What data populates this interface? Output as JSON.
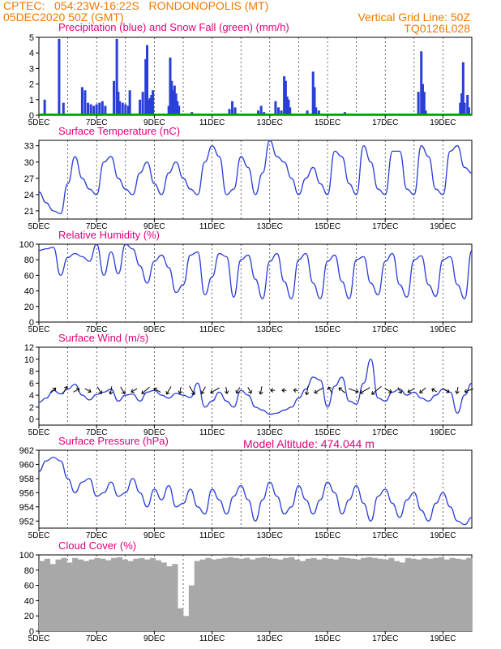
{
  "header": {
    "line1_left": "CPTEC:   054:23W-16:22S   RONDONOPOLIS (MT)",
    "line2_left": "05DEC2020 50Z (GMT)",
    "line2_right": "Vertical Grid Line: 50Z",
    "line3_right": "TQ0126L028",
    "altitude": "Model Altitude: 474.044 m"
  },
  "colors": {
    "orange": "#f07a00",
    "magenta": "#e0007a",
    "line": "#2a3ed8",
    "snow": "#00a000",
    "cloud": "#a8a8a8"
  },
  "date_ticks": [
    "5DEC",
    "7DEC",
    "9DEC",
    "11DEC",
    "13DEC",
    "15DEC",
    "17DEC",
    "19DEC"
  ],
  "chart_data": [
    {
      "type": "bar",
      "title": "Precipitation (blue) and Snow Fall (green) (mm/h)",
      "ylabel": "",
      "ylim": [
        0,
        5
      ],
      "yticks": [
        "0",
        "1",
        "2",
        "3",
        "4",
        "5"
      ],
      "x_unit": "days since 05DEC 00Z",
      "xlim": [
        0,
        15
      ],
      "series": [
        {
          "name": "Precipitation",
          "values": [
            [
              0.2,
              1.0
            ],
            [
              0.7,
              4.9
            ],
            [
              0.85,
              0.8
            ],
            [
              1.5,
              1.8
            ],
            [
              1.6,
              1.6
            ],
            [
              1.7,
              0.8
            ],
            [
              1.8,
              0.7
            ],
            [
              1.9,
              0.6
            ],
            [
              2.0,
              0.7
            ],
            [
              2.1,
              0.8
            ],
            [
              2.2,
              0.9
            ],
            [
              2.3,
              0.6
            ],
            [
              2.6,
              2.2
            ],
            [
              2.7,
              4.9
            ],
            [
              2.75,
              1.5
            ],
            [
              2.8,
              0.9
            ],
            [
              2.9,
              0.8
            ],
            [
              3.0,
              0.7
            ],
            [
              3.1,
              0.6
            ],
            [
              3.15,
              1.6
            ],
            [
              3.5,
              1.0
            ],
            [
              3.6,
              1.5
            ],
            [
              3.7,
              3.6
            ],
            [
              3.75,
              4.5
            ],
            [
              3.8,
              1.0
            ],
            [
              3.85,
              1.1
            ],
            [
              3.9,
              1.3
            ],
            [
              3.95,
              1.6
            ],
            [
              4.5,
              0.6
            ],
            [
              4.55,
              3.7
            ],
            [
              4.6,
              2.2
            ],
            [
              4.65,
              1.6
            ],
            [
              4.7,
              1.9
            ],
            [
              4.75,
              1.4
            ],
            [
              4.8,
              0.9
            ],
            [
              4.85,
              0.6
            ],
            [
              5.3,
              0.2
            ],
            [
              6.6,
              0.4
            ],
            [
              6.7,
              0.9
            ],
            [
              6.8,
              0.5
            ],
            [
              7.6,
              0.3
            ],
            [
              7.7,
              0.6
            ],
            [
              7.8,
              0.2
            ],
            [
              8.2,
              0.9
            ],
            [
              8.3,
              0.5
            ],
            [
              8.4,
              0.3
            ],
            [
              8.5,
              2.5
            ],
            [
              8.55,
              2.2
            ],
            [
              8.6,
              1.2
            ],
            [
              8.65,
              1.0
            ],
            [
              8.7,
              0.5
            ],
            [
              9.3,
              0.3
            ],
            [
              9.5,
              2.8
            ],
            [
              9.55,
              1.8
            ],
            [
              9.6,
              0.5
            ],
            [
              9.7,
              0.3
            ],
            [
              10.6,
              0.2
            ],
            [
              13.15,
              1.5
            ],
            [
              13.25,
              4.1
            ],
            [
              13.3,
              2.0
            ],
            [
              13.35,
              1.5
            ],
            [
              13.4,
              0.3
            ],
            [
              14.6,
              0.8
            ],
            [
              14.65,
              1.4
            ],
            [
              14.7,
              3.4
            ],
            [
              14.75,
              0.8
            ],
            [
              14.85,
              1.3
            ],
            [
              14.9,
              0.5
            ]
          ]
        },
        {
          "name": "Snow Fall",
          "values": []
        }
      ]
    },
    {
      "type": "line",
      "title": "Surface Temperature (nC)",
      "ylim": [
        19.5,
        34
      ],
      "yticks": [
        "21",
        "24",
        "27",
        "30",
        "33"
      ],
      "x": [
        0,
        0.25,
        0.5,
        0.75,
        1.0,
        1.25,
        1.5,
        1.75,
        2.0,
        2.25,
        2.5,
        2.75,
        3.0,
        3.25,
        3.5,
        3.75,
        4.0,
        4.25,
        4.5,
        4.75,
        5.0,
        5.25,
        5.5,
        5.75,
        6.0,
        6.25,
        6.5,
        6.75,
        7.0,
        7.25,
        7.5,
        7.75,
        8.0,
        8.25,
        8.5,
        8.75,
        9.0,
        9.25,
        9.5,
        9.75,
        10.0,
        10.25,
        10.5,
        10.75,
        11.0,
        11.25,
        11.5,
        11.75,
        12.0,
        12.25,
        12.5,
        12.75,
        13.0,
        13.25,
        13.5,
        13.75,
        14.0,
        14.25,
        14.5,
        14.75,
        15.0
      ],
      "values": [
        24.5,
        22.5,
        21,
        20.5,
        26,
        31,
        27,
        25,
        24,
        30,
        31,
        27,
        25,
        24,
        28,
        30,
        26,
        24,
        28,
        30,
        27,
        25,
        24,
        30,
        33,
        31,
        24,
        25,
        31,
        29,
        24,
        28,
        34,
        31,
        30,
        27,
        24,
        27,
        29,
        26,
        24,
        32,
        31,
        26,
        24,
        33,
        30,
        25,
        24,
        32,
        32,
        25,
        24,
        33,
        31,
        25,
        24,
        32,
        33,
        29,
        28
      ]
    },
    {
      "type": "line",
      "title": "Relative Humidity (%)",
      "ylim": [
        0,
        100
      ],
      "yticks": [
        "0",
        "20",
        "40",
        "60",
        "80",
        "100"
      ],
      "values": [
        92,
        94,
        96,
        60,
        83,
        88,
        84,
        78,
        100,
        60,
        90,
        62,
        100,
        94,
        72,
        50,
        78,
        86,
        70,
        38,
        48,
        86,
        90,
        35,
        58,
        88,
        84,
        32,
        80,
        86,
        55,
        30,
        78,
        88,
        52,
        30,
        80,
        88,
        50,
        30,
        78,
        86,
        52,
        30,
        80,
        84,
        50,
        35,
        78,
        88,
        48,
        32,
        80,
        85,
        48,
        33,
        80,
        84,
        48,
        30,
        92
      ]
    },
    {
      "type": "line",
      "title": "Surface Wind (m/s)",
      "ylim": [
        -1,
        12
      ],
      "yticks": [
        "0",
        "2",
        "4",
        "6",
        "8",
        "10",
        "12"
      ],
      "values": [
        2.8,
        3.5,
        4.8,
        4.2,
        5.0,
        5.8,
        4.0,
        3.2,
        4.1,
        4.5,
        5.0,
        3.0,
        4.0,
        4.2,
        3.0,
        4.5,
        4.8,
        4.0,
        3.5,
        4.3,
        4.0,
        3.6,
        6.0,
        2.0,
        3.0,
        4.5,
        3.0,
        2.0,
        4.8,
        4.0,
        2.0,
        1.5,
        0.8,
        1.0,
        1.5,
        2.0,
        3.5,
        5.0,
        7.0,
        6.5,
        2.0,
        5.5,
        7.0,
        3.0,
        2.5,
        6.0,
        10.0,
        3.5,
        3.0,
        4.5,
        5.0,
        4.0,
        4.5,
        3.5,
        3.0,
        4.0,
        5.0,
        4.5,
        1.0,
        4.0,
        6.0
      ],
      "arrow_x": [
        0.5,
        0.9,
        1.3,
        1.7,
        2.1,
        2.5,
        2.9,
        3.3,
        3.7,
        4.1,
        4.5,
        4.9,
        5.3,
        5.7,
        6.1,
        6.5,
        6.9,
        7.3,
        7.7,
        8.1,
        8.5,
        8.9,
        9.3,
        9.7,
        10.1,
        10.5,
        10.9,
        11.3,
        11.7,
        12.1,
        12.5,
        12.9,
        13.3,
        13.7,
        14.1,
        14.5,
        14.9
      ],
      "arrow_deg": [
        45,
        60,
        30,
        -30,
        -60,
        -100,
        -60,
        -150,
        -140,
        150,
        -120,
        -100,
        -60,
        -120,
        -150,
        -80,
        -120,
        -60,
        -100,
        180,
        180,
        170,
        -100,
        -150,
        120,
        140,
        -20,
        -150,
        -140,
        -30,
        -60,
        -150,
        -140,
        150,
        -30,
        -100,
        -160
      ],
      "arrow_len": [
        0.6,
        0.8,
        0.6,
        0.6,
        0.7,
        0.7,
        0.7,
        0.6,
        0.9,
        0.7,
        0.8,
        0.6,
        0.9,
        0.7,
        0.9,
        0.6,
        0.6,
        0.6,
        0.7,
        0.4,
        0.4,
        0.4,
        0.8,
        0.9,
        0.7,
        0.7,
        0.9,
        1.0,
        1.1,
        0.7,
        0.6,
        0.7,
        0.7,
        0.5,
        0.7,
        0.6,
        0.8
      ]
    },
    {
      "type": "line",
      "title": "Surface Pressure (hPa)",
      "ylim": [
        951,
        962
      ],
      "yticks": [
        "952",
        "954",
        "956",
        "958",
        "960",
        "962"
      ],
      "values": [
        959,
        960.5,
        961,
        960.5,
        958,
        956,
        957.5,
        958,
        955.5,
        956,
        957.5,
        955.5,
        956,
        958,
        956,
        954,
        956.5,
        955,
        957,
        954,
        954.5,
        956.5,
        954,
        953,
        956.5,
        955,
        953,
        955.5,
        957,
        955,
        952,
        955,
        957.5,
        955.5,
        953,
        954,
        957,
        955,
        953,
        955,
        957.5,
        956,
        953,
        955,
        957,
        954.5,
        952,
        955.5,
        956.5,
        954.5,
        952.5,
        955,
        956,
        953.5,
        952,
        954.5,
        956,
        954,
        952,
        951.5,
        952.5
      ]
    },
    {
      "type": "bar",
      "title": "Cloud Cover (%)",
      "ylim": [
        0,
        100
      ],
      "yticks": [
        "0",
        "20",
        "40",
        "60",
        "80",
        "100"
      ],
      "values": [
        92,
        95,
        88,
        94,
        96,
        90,
        96,
        94,
        92,
        94,
        96,
        95,
        93,
        96,
        97,
        94,
        92,
        95,
        96,
        94,
        96,
        93,
        90,
        85,
        88,
        30,
        20,
        60,
        92,
        94,
        96,
        94,
        95,
        96,
        97,
        96,
        95,
        96,
        94,
        96,
        97,
        96,
        95,
        94,
        96,
        97,
        94,
        92,
        95,
        96,
        94,
        96,
        95,
        94,
        97,
        96,
        95,
        94,
        96,
        97,
        96,
        95,
        94,
        96,
        92,
        90,
        96,
        95,
        94,
        96,
        95,
        96,
        97,
        94,
        96,
        95,
        94,
        96
      ]
    }
  ]
}
